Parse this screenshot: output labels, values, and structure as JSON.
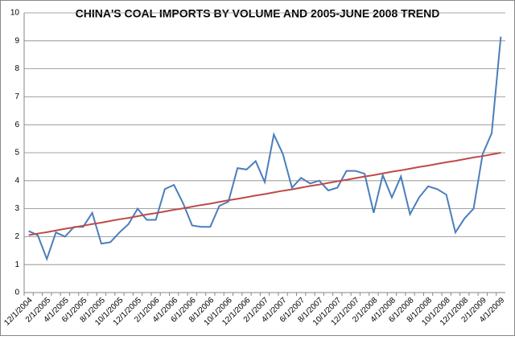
{
  "chart_data": {
    "type": "line",
    "title": "CHINA'S COAL IMPORTS BY VOLUME AND 2005-JUNE 2008 TREND",
    "categories": [
      "12/1/2004",
      null,
      "2/1/2005",
      null,
      "4/1/2005",
      null,
      "6/1/2005",
      null,
      "8/1/2005",
      null,
      "10/1/2005",
      null,
      "12/1/2005",
      null,
      "2/1/2006",
      null,
      "4/1/2006",
      null,
      "6/1/2006",
      null,
      "8/1/2006",
      null,
      "10/1/2006",
      null,
      "12/1/2006",
      null,
      "2/1/2007",
      null,
      "4/1/2007",
      null,
      "6/1/2007",
      null,
      "8/1/2007",
      null,
      "10/1/2007",
      null,
      "12/1/2007",
      null,
      "2/1/2008",
      null,
      "4/1/2008",
      null,
      "6/1/2008",
      null,
      "8/1/2008",
      null,
      "10/1/2008",
      null,
      "12/1/2008",
      null,
      "2/1/2009",
      null,
      "4/1/2009"
    ],
    "series": [
      {
        "color": "#4a7ebb",
        "values": [
          2.2,
          2.05,
          1.2,
          2.15,
          2.0,
          2.35,
          2.35,
          2.85,
          1.75,
          1.8,
          2.15,
          2.45,
          3.0,
          2.6,
          2.6,
          3.7,
          3.85,
          3.2,
          2.4,
          2.35,
          2.35,
          3.1,
          3.25,
          4.45,
          4.4,
          4.7,
          3.95,
          5.65,
          4.95,
          3.75,
          4.1,
          3.9,
          4.0,
          3.65,
          3.75,
          4.35,
          4.35,
          4.25,
          2.85,
          4.2,
          3.4,
          4.15,
          2.8,
          3.4,
          3.8,
          3.7,
          3.5,
          2.15,
          2.65,
          3.0,
          4.95,
          5.7,
          9.15
        ]
      },
      {
        "color": "#be4b48",
        "values": [
          2.05,
          2.11,
          2.16,
          2.22,
          2.28,
          2.33,
          2.39,
          2.45,
          2.5,
          2.56,
          2.62,
          2.67,
          2.73,
          2.79,
          2.84,
          2.9,
          2.96,
          3.01,
          3.07,
          3.13,
          3.18,
          3.24,
          3.3,
          3.35,
          3.41,
          3.47,
          3.52,
          3.58,
          3.64,
          3.69,
          3.75,
          3.81,
          3.86,
          3.92,
          3.98,
          4.03,
          4.09,
          4.15,
          4.2,
          4.26,
          4.32,
          4.37,
          4.43,
          4.49,
          4.54,
          4.6,
          4.66,
          4.71,
          4.77,
          4.83,
          4.88,
          4.94,
          5.0
        ]
      }
    ],
    "ylim": [
      0,
      10
    ],
    "yticks": [
      0,
      1,
      2,
      3,
      4,
      5,
      6,
      7,
      8,
      9,
      10
    ],
    "grid": true
  }
}
